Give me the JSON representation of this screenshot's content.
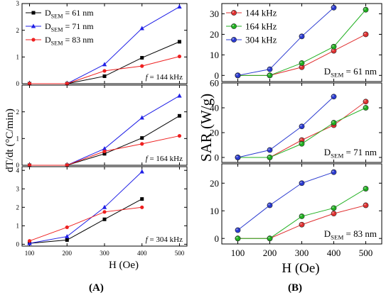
{
  "panel_labels": {
    "a": "(A)",
    "b": "(B)"
  },
  "chart_data": [
    {
      "id": "A1",
      "type": "line",
      "ylim": [
        0,
        3
      ],
      "yticks": [
        0,
        1,
        2,
        3
      ],
      "x": [
        100,
        200,
        300,
        400,
        500
      ],
      "xlim": [
        80,
        520
      ],
      "show_xticks": false,
      "legend": "top-left",
      "annotation": "f = 144 kHz",
      "series": [
        {
          "name": "D_SEM = 61 nm",
          "color": "#000000",
          "marker": "square",
          "values": [
            0,
            0,
            0.28,
            0.97,
            1.57
          ]
        },
        {
          "name": "D_SEM = 71 nm",
          "color": "#1f1fe6",
          "marker": "triangle",
          "values": [
            0,
            0,
            0.72,
            2.07,
            2.88
          ]
        },
        {
          "name": "D_SEM = 83 nm",
          "color": "#ee2020",
          "marker": "circle",
          "values": [
            0,
            0,
            0.48,
            0.66,
            1.02
          ]
        }
      ]
    },
    {
      "id": "A2",
      "type": "line",
      "ylim": [
        0,
        3
      ],
      "yticks": [
        0,
        1,
        2
      ],
      "x": [
        100,
        200,
        300,
        400,
        500
      ],
      "xlim": [
        80,
        520
      ],
      "show_xticks": false,
      "annotation": "f = 164 kHz",
      "series": [
        {
          "name": "D_SEM = 61 nm",
          "color": "#000000",
          "marker": "square",
          "values": [
            0,
            0,
            0.43,
            1.02,
            1.85
          ]
        },
        {
          "name": "D_SEM = 71 nm",
          "color": "#1f1fe6",
          "marker": "triangle",
          "values": [
            0,
            0,
            0.62,
            1.78,
            2.6
          ]
        },
        {
          "name": "D_SEM = 83 nm",
          "color": "#ee2020",
          "marker": "circle",
          "values": [
            0,
            0,
            0.52,
            0.8,
            1.1
          ]
        }
      ]
    },
    {
      "id": "A3",
      "type": "line",
      "ylim": [
        -0.1,
        4.2
      ],
      "yticks": [
        0,
        1,
        2,
        3,
        4
      ],
      "x": [
        100,
        200,
        300,
        400,
        500
      ],
      "xlim": [
        80,
        520
      ],
      "show_xticks": true,
      "xticks": [
        100,
        200,
        300,
        400,
        500
      ],
      "annotation": "f = 304 kHz",
      "series": [
        {
          "name": "D_SEM = 61 nm",
          "color": "#000000",
          "marker": "square",
          "x": [
            100,
            200,
            300,
            400
          ],
          "values": [
            0.05,
            0.23,
            1.35,
            2.45
          ]
        },
        {
          "name": "D_SEM = 71 nm",
          "color": "#1f1fe6",
          "marker": "triangle",
          "x": [
            100,
            200,
            300,
            400
          ],
          "values": [
            0.05,
            0.42,
            2.0,
            3.93
          ]
        },
        {
          "name": "D_SEM = 83 nm",
          "color": "#ee2020",
          "marker": "circle",
          "x": [
            100,
            200,
            300,
            400
          ],
          "values": [
            0.18,
            0.92,
            1.75,
            2.0
          ]
        }
      ]
    },
    {
      "id": "B1",
      "type": "line",
      "ylim": [
        -3,
        35
      ],
      "yticks": [
        0,
        10,
        20,
        30
      ],
      "x": [
        100,
        200,
        300,
        400,
        500
      ],
      "xlim": [
        50,
        550
      ],
      "show_xticks": false,
      "legend": "top-left",
      "annotation": "D_SEM = 61 nm",
      "series": [
        {
          "name": "144 kHz",
          "color": "#e03030",
          "values": [
            0,
            0,
            4,
            12,
            20
          ]
        },
        {
          "name": "164 kHz",
          "color": "#20b020",
          "values": [
            0,
            0,
            6,
            14,
            32
          ]
        },
        {
          "name": "304 kHz",
          "color": "#2a3ad0",
          "x": [
            100,
            200,
            300,
            400
          ],
          "values": [
            0,
            3,
            19,
            33
          ]
        }
      ]
    },
    {
      "id": "B2",
      "type": "line",
      "ylim": [
        -4,
        60
      ],
      "yticks": [
        0,
        20,
        40,
        60
      ],
      "x": [
        100,
        200,
        300,
        400,
        500
      ],
      "xlim": [
        50,
        550
      ],
      "show_xticks": false,
      "annotation": "D_SEM = 71 nm",
      "series": [
        {
          "name": "144 kHz",
          "color": "#e03030",
          "values": [
            0,
            0,
            14,
            26,
            45
          ]
        },
        {
          "name": "164 kHz",
          "color": "#20b020",
          "values": [
            0,
            0,
            11,
            28,
            40
          ]
        },
        {
          "name": "304 kHz",
          "color": "#2a3ad0",
          "x": [
            100,
            200,
            300,
            400
          ],
          "values": [
            0,
            6,
            25,
            49
          ]
        }
      ]
    },
    {
      "id": "B3",
      "type": "line",
      "ylim": [
        -2,
        27
      ],
      "yticks": [
        0,
        10,
        20
      ],
      "x": [
        100,
        200,
        300,
        400,
        500
      ],
      "xlim": [
        50,
        550
      ],
      "show_xticks": true,
      "xticks": [
        100,
        200,
        300,
        400,
        500
      ],
      "annotation": "D_SEM = 83 nm",
      "series": [
        {
          "name": "144 kHz",
          "color": "#e03030",
          "values": [
            0,
            0,
            5,
            9,
            12
          ]
        },
        {
          "name": "164 kHz",
          "color": "#20b020",
          "values": [
            0,
            0,
            8,
            11,
            18
          ]
        },
        {
          "name": "304 kHz",
          "color": "#2a3ad0",
          "x": [
            100,
            200,
            300,
            400
          ],
          "values": [
            3,
            12,
            20,
            24
          ]
        }
      ]
    }
  ],
  "axes": {
    "a_ylabel": "dT/dt (°C/min)",
    "a_xlabel": "H (Oe)",
    "b_ylabel": "SAR (W/g)",
    "b_xlabel": "H (Oe)"
  }
}
